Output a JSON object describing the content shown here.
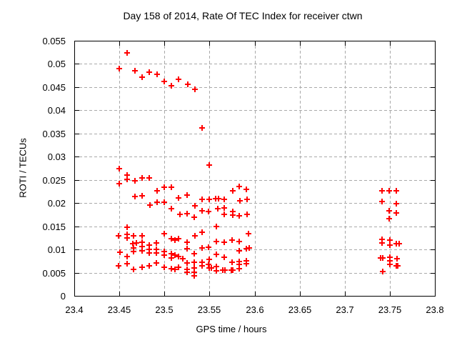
{
  "chart_data": {
    "type": "scatter",
    "title": "Day 158 of 2014, Rate Of TEC Index for receiver ctwn",
    "xlabel": "GPS time / hours",
    "ylabel": "ROTI / TECUs",
    "xlim": [
      23.4,
      23.8
    ],
    "ylim": [
      0,
      0.055
    ],
    "xticks": [
      23.4,
      23.45,
      23.5,
      23.55,
      23.6,
      23.65,
      23.7,
      23.75,
      23.8
    ],
    "xtick_labels": [
      "23.4",
      "23.45",
      "23.5",
      "23.55",
      "23.6",
      "23.65",
      "23.7",
      "23.75",
      "23.8"
    ],
    "yticks": [
      0,
      0.005,
      0.01,
      0.015,
      0.02,
      0.025,
      0.03,
      0.035,
      0.04,
      0.045,
      0.05,
      0.055
    ],
    "ytick_labels": [
      "0",
      "0.005",
      "0.01",
      "0.015",
      "0.02",
      "0.025",
      "0.03",
      "0.035",
      "0.04",
      "0.045",
      "0.05",
      "0.055"
    ],
    "grid": true,
    "grid_style": "dashed",
    "grid_color": "#a9a9a9",
    "border_color": "#000000",
    "legend": "none",
    "marker": "plus",
    "marker_color": "#ff0000",
    "series": [
      {
        "name": "ROTI",
        "points": [
          [
            23.459,
            0.0524
          ],
          [
            23.45,
            0.049
          ],
          [
            23.467,
            0.0485
          ],
          [
            23.475,
            0.0471
          ],
          [
            23.483,
            0.0482
          ],
          [
            23.492,
            0.0478
          ],
          [
            23.5,
            0.0462
          ],
          [
            23.508,
            0.0453
          ],
          [
            23.516,
            0.0467
          ],
          [
            23.526,
            0.0456
          ],
          [
            23.534,
            0.0445
          ],
          [
            23.542,
            0.0362
          ],
          [
            23.55,
            0.0282
          ],
          [
            23.45,
            0.0274
          ],
          [
            23.45,
            0.0242
          ],
          [
            23.459,
            0.0261
          ],
          [
            23.459,
            0.0251
          ],
          [
            23.467,
            0.0248
          ],
          [
            23.475,
            0.0254
          ],
          [
            23.483,
            0.0254
          ],
          [
            23.467,
            0.0214
          ],
          [
            23.475,
            0.0216
          ],
          [
            23.492,
            0.0226
          ],
          [
            23.5,
            0.0234
          ],
          [
            23.508,
            0.0234
          ],
          [
            23.484,
            0.0196
          ],
          [
            23.492,
            0.0202
          ],
          [
            23.5,
            0.0202
          ],
          [
            23.508,
            0.0188
          ],
          [
            23.516,
            0.0211
          ],
          [
            23.517,
            0.0176
          ],
          [
            23.525,
            0.0217
          ],
          [
            23.534,
            0.0194
          ],
          [
            23.525,
            0.0177
          ],
          [
            23.533,
            0.0169
          ],
          [
            23.542,
            0.0208
          ],
          [
            23.542,
            0.0183
          ],
          [
            23.55,
            0.0208
          ],
          [
            23.549,
            0.0182
          ],
          [
            23.557,
            0.0209
          ],
          [
            23.56,
            0.0209
          ],
          [
            23.559,
            0.0188
          ],
          [
            23.566,
            0.0208
          ],
          [
            23.566,
            0.0189
          ],
          [
            23.566,
            0.0176
          ],
          [
            23.576,
            0.0227
          ],
          [
            23.583,
            0.0236
          ],
          [
            23.591,
            0.0229
          ],
          [
            23.584,
            0.0205
          ],
          [
            23.592,
            0.0208
          ],
          [
            23.576,
            0.0182
          ],
          [
            23.576,
            0.0174
          ],
          [
            23.583,
            0.0173
          ],
          [
            23.592,
            0.0175
          ],
          [
            23.558,
            0.015
          ],
          [
            23.459,
            0.0148
          ],
          [
            23.449,
            0.0129
          ],
          [
            23.459,
            0.0132
          ],
          [
            23.459,
            0.0125
          ],
          [
            23.466,
            0.0129
          ],
          [
            23.475,
            0.0129
          ],
          [
            23.5,
            0.0134
          ],
          [
            23.508,
            0.0123
          ],
          [
            23.512,
            0.012
          ],
          [
            23.516,
            0.0123
          ],
          [
            23.465,
            0.0112
          ],
          [
            23.469,
            0.0114
          ],
          [
            23.475,
            0.0116
          ],
          [
            23.475,
            0.0106
          ],
          [
            23.483,
            0.0109
          ],
          [
            23.491,
            0.0114
          ],
          [
            23.466,
            0.0103
          ],
          [
            23.483,
            0.01
          ],
          [
            23.491,
            0.01
          ],
          [
            23.475,
            0.0097
          ],
          [
            23.451,
            0.0094
          ],
          [
            23.466,
            0.0096
          ],
          [
            23.483,
            0.0092
          ],
          [
            23.491,
            0.0092
          ],
          [
            23.5,
            0.0096
          ],
          [
            23.5,
            0.0088
          ],
          [
            23.508,
            0.0091
          ],
          [
            23.512,
            0.0088
          ],
          [
            23.459,
            0.0085
          ],
          [
            23.508,
            0.0082
          ],
          [
            23.516,
            0.0085
          ],
          [
            23.52,
            0.008
          ],
          [
            23.449,
            0.0065
          ],
          [
            23.459,
            0.0069
          ],
          [
            23.466,
            0.0057
          ],
          [
            23.475,
            0.0062
          ],
          [
            23.483,
            0.0065
          ],
          [
            23.491,
            0.0071
          ],
          [
            23.5,
            0.0062
          ],
          [
            23.508,
            0.0059
          ],
          [
            23.512,
            0.0057
          ],
          [
            23.516,
            0.0062
          ],
          [
            23.542,
            0.0137
          ],
          [
            23.534,
            0.0129
          ],
          [
            23.593,
            0.0134
          ],
          [
            23.525,
            0.0116
          ],
          [
            23.558,
            0.0117
          ],
          [
            23.566,
            0.0116
          ],
          [
            23.575,
            0.012
          ],
          [
            23.583,
            0.0117
          ],
          [
            23.525,
            0.0102
          ],
          [
            23.533,
            0.0091
          ],
          [
            23.542,
            0.0103
          ],
          [
            23.549,
            0.0105
          ],
          [
            23.558,
            0.0089
          ],
          [
            23.583,
            0.0097
          ],
          [
            23.591,
            0.0102
          ],
          [
            23.594,
            0.0103
          ],
          [
            23.566,
            0.0083
          ],
          [
            23.55,
            0.0079
          ],
          [
            23.525,
            0.0071
          ],
          [
            23.533,
            0.0072
          ],
          [
            23.542,
            0.0072
          ],
          [
            23.542,
            0.0065
          ],
          [
            23.549,
            0.0068
          ],
          [
            23.533,
            0.006
          ],
          [
            23.525,
            0.0057
          ],
          [
            23.525,
            0.0051
          ],
          [
            23.533,
            0.0051
          ],
          [
            23.533,
            0.0043
          ],
          [
            23.55,
            0.006
          ],
          [
            23.552,
            0.006
          ],
          [
            23.558,
            0.0063
          ],
          [
            23.558,
            0.0054
          ],
          [
            23.565,
            0.0055
          ],
          [
            23.567,
            0.0055
          ],
          [
            23.574,
            0.0055
          ],
          [
            23.576,
            0.0055
          ],
          [
            23.583,
            0.0059
          ],
          [
            23.583,
            0.0068
          ],
          [
            23.575,
            0.0072
          ],
          [
            23.583,
            0.0074
          ],
          [
            23.591,
            0.0075
          ],
          [
            23.591,
            0.0069
          ],
          [
            23.741,
            0.0226
          ],
          [
            23.749,
            0.0226
          ],
          [
            23.757,
            0.0226
          ],
          [
            23.741,
            0.0203
          ],
          [
            23.757,
            0.0199
          ],
          [
            23.749,
            0.0184
          ],
          [
            23.757,
            0.0179
          ],
          [
            23.749,
            0.0166
          ],
          [
            23.741,
            0.0122
          ],
          [
            23.741,
            0.0114
          ],
          [
            23.75,
            0.012
          ],
          [
            23.75,
            0.0109
          ],
          [
            23.757,
            0.0112
          ],
          [
            23.76,
            0.0112
          ],
          [
            23.74,
            0.0082
          ],
          [
            23.742,
            0.0082
          ],
          [
            23.75,
            0.0083
          ],
          [
            23.75,
            0.0075
          ],
          [
            23.75,
            0.0068
          ],
          [
            23.758,
            0.008
          ],
          [
            23.757,
            0.0065
          ],
          [
            23.759,
            0.0065
          ],
          [
            23.742,
            0.0052
          ]
        ]
      }
    ]
  }
}
